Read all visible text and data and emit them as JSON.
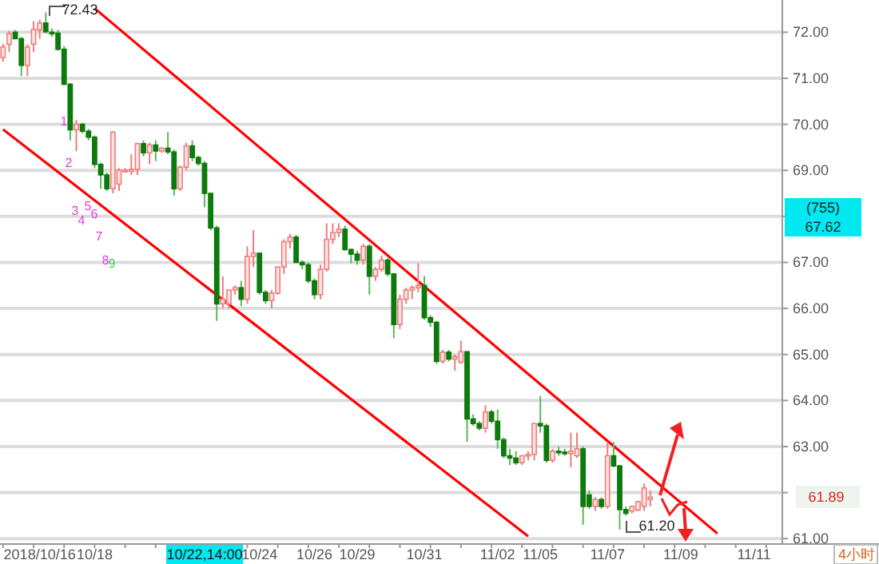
{
  "chart_data": {
    "type": "candlestick",
    "categories": [
      null,
      null,
      null,
      null,
      null,
      null,
      "2018/10/16",
      null,
      null,
      null,
      null,
      null,
      null,
      null,
      null,
      "10/18",
      null,
      null,
      null,
      null,
      null,
      null,
      null,
      null,
      null,
      null,
      null,
      null,
      null,
      null,
      null,
      null,
      null,
      null,
      null,
      null,
      null,
      null,
      null,
      null,
      null,
      null,
      "10/24",
      null,
      null,
      null,
      null,
      null,
      null,
      null,
      null,
      "10/26",
      null,
      null,
      null,
      null,
      null,
      null,
      "10/29",
      null,
      null,
      null,
      null,
      null,
      null,
      null,
      null,
      null,
      null,
      "10/31",
      null,
      null,
      null,
      null,
      null,
      null,
      null,
      null,
      null,
      null,
      null,
      "11/02",
      null,
      null,
      null,
      null,
      null,
      null,
      "11/05",
      null,
      null,
      null,
      null,
      null,
      null,
      null,
      null,
      null,
      null,
      "11/07",
      null,
      null,
      null,
      null,
      null,
      null,
      null,
      null,
      null,
      null,
      null,
      "11/09",
      null,
      null,
      null,
      null,
      null,
      null,
      null,
      null,
      null,
      null,
      null,
      "11/11",
      null,
      null,
      null,
      null
    ],
    "ohlc": [
      [
        71.45,
        71.75,
        71.36,
        71.68
      ],
      [
        71.74,
        72.03,
        71.57,
        71.97
      ],
      [
        72.0,
        72.05,
        71.85,
        71.86
      ],
      [
        71.86,
        71.9,
        71.05,
        71.28
      ],
      [
        71.28,
        71.74,
        71.05,
        71.68
      ],
      [
        71.74,
        72.24,
        71.57,
        72.06
      ],
      [
        72.05,
        72.27,
        71.86,
        72.2
      ],
      [
        72.2,
        72.43,
        71.98,
        72.01
      ],
      [
        72.0,
        72.08,
        71.9,
        71.98
      ],
      [
        71.98,
        72.05,
        71.6,
        71.63
      ],
      [
        71.63,
        71.7,
        70.85,
        70.87
      ],
      [
        70.87,
        70.9,
        69.65,
        69.88
      ],
      [
        69.88,
        70.1,
        69.42,
        70.0
      ],
      [
        70.0,
        70.03,
        69.8,
        69.85
      ],
      [
        69.85,
        69.9,
        69.65,
        69.72
      ],
      [
        69.72,
        69.76,
        69.05,
        69.13
      ],
      [
        69.13,
        69.17,
        68.6,
        68.9
      ],
      [
        68.9,
        68.95,
        68.55,
        68.6
      ],
      [
        68.6,
        69.85,
        68.5,
        69.83
      ],
      [
        68.7,
        69.05,
        68.55,
        69.0
      ],
      [
        69.0,
        69.05,
        68.95,
        69.0
      ],
      [
        68.98,
        69.35,
        68.9,
        69.02
      ],
      [
        69.02,
        69.6,
        68.9,
        69.58
      ],
      [
        69.58,
        69.65,
        69.3,
        69.38
      ],
      [
        69.38,
        69.6,
        69.13,
        69.55
      ],
      [
        69.55,
        69.65,
        69.2,
        69.42
      ],
      [
        69.42,
        69.5,
        69.38,
        69.48
      ],
      [
        69.48,
        69.83,
        69.35,
        69.4
      ],
      [
        69.4,
        69.45,
        68.45,
        68.6
      ],
      [
        68.6,
        69.1,
        68.55,
        69.07
      ],
      [
        69.07,
        69.6,
        69.0,
        69.53
      ],
      [
        69.53,
        69.65,
        69.2,
        69.28
      ],
      [
        69.28,
        69.32,
        69.1,
        69.15
      ],
      [
        69.15,
        69.2,
        68.2,
        68.5
      ],
      [
        68.5,
        68.5,
        67.7,
        67.75
      ],
      [
        67.75,
        67.8,
        65.73,
        66.1
      ],
      [
        66.1,
        66.7,
        66.0,
        66.2
      ],
      [
        66.1,
        66.4,
        66.0,
        66.4
      ],
      [
        66.4,
        66.5,
        66.3,
        66.45
      ],
      [
        66.45,
        66.6,
        66.05,
        66.2
      ],
      [
        66.2,
        67.35,
        66.1,
        67.13
      ],
      [
        67.13,
        67.7,
        66.9,
        67.2
      ],
      [
        67.2,
        67.2,
        66.3,
        66.35
      ],
      [
        66.35,
        66.4,
        66.1,
        66.17
      ],
      [
        66.17,
        66.4,
        66.0,
        66.33
      ],
      [
        66.33,
        66.9,
        66.3,
        66.9
      ],
      [
        66.9,
        67.5,
        66.75,
        67.45
      ],
      [
        67.45,
        67.62,
        67.3,
        67.55
      ],
      [
        67.55,
        67.6,
        67.0,
        67.0
      ],
      [
        67.0,
        67.05,
        66.85,
        66.95
      ],
      [
        66.95,
        67.0,
        66.55,
        66.6
      ],
      [
        66.6,
        66.65,
        66.2,
        66.3
      ],
      [
        66.3,
        66.95,
        66.2,
        66.85
      ],
      [
        66.85,
        67.85,
        66.8,
        67.5
      ],
      [
        67.5,
        67.85,
        67.4,
        67.65
      ],
      [
        67.65,
        67.85,
        67.55,
        67.72
      ],
      [
        67.72,
        67.8,
        67.25,
        67.28
      ],
      [
        67.28,
        67.3,
        66.98,
        67.18
      ],
      [
        67.18,
        67.25,
        66.95,
        67.05
      ],
      [
        67.05,
        67.4,
        66.95,
        67.35
      ],
      [
        67.35,
        67.4,
        66.3,
        66.7
      ],
      [
        66.7,
        66.9,
        66.6,
        66.85
      ],
      [
        66.85,
        67.15,
        66.8,
        67.05
      ],
      [
        67.05,
        67.1,
        66.7,
        66.75
      ],
      [
        66.75,
        66.75,
        65.35,
        65.65
      ],
      [
        65.65,
        66.3,
        65.55,
        66.2
      ],
      [
        66.2,
        66.45,
        66.1,
        66.4
      ],
      [
        66.4,
        66.5,
        66.2,
        66.45
      ],
      [
        66.45,
        66.98,
        66.35,
        66.5
      ],
      [
        66.5,
        66.7,
        65.75,
        65.8
      ],
      [
        65.8,
        65.85,
        65.6,
        65.7
      ],
      [
        65.7,
        65.72,
        64.8,
        64.85
      ],
      [
        64.85,
        65.1,
        64.8,
        65.05
      ],
      [
        65.05,
        65.1,
        64.85,
        64.9
      ],
      [
        64.9,
        65.0,
        64.65,
        64.95
      ],
      [
        64.83,
        65.3,
        64.8,
        65.06
      ],
      [
        65.06,
        65.06,
        63.1,
        63.6
      ],
      [
        63.6,
        63.7,
        63.45,
        63.5
      ],
      [
        63.5,
        63.55,
        63.35,
        63.4
      ],
      [
        63.4,
        63.9,
        63.3,
        63.75
      ],
      [
        63.75,
        63.8,
        63.5,
        63.55
      ],
      [
        63.55,
        63.8,
        62.95,
        63.15
      ],
      [
        63.15,
        63.2,
        62.75,
        62.8
      ],
      [
        62.8,
        62.95,
        62.6,
        62.75
      ],
      [
        62.75,
        62.9,
        62.6,
        62.65
      ],
      [
        62.65,
        62.8,
        62.6,
        62.8
      ],
      [
        62.8,
        62.9,
        62.7,
        62.83
      ],
      [
        62.83,
        63.5,
        62.7,
        63.5
      ],
      [
        63.5,
        64.1,
        63.3,
        63.45
      ],
      [
        63.45,
        63.5,
        62.65,
        62.7
      ],
      [
        62.7,
        62.95,
        62.65,
        62.9
      ],
      [
        62.9,
        63.0,
        62.8,
        62.88
      ],
      [
        62.88,
        62.95,
        62.8,
        62.85
      ],
      [
        62.85,
        63.3,
        62.55,
        62.9
      ],
      [
        62.8,
        63.3,
        62.75,
        62.95
      ],
      [
        62.95,
        63.0,
        61.3,
        61.7
      ],
      [
        61.95,
        62.05,
        61.65,
        61.7
      ],
      [
        61.7,
        61.9,
        61.6,
        61.85
      ],
      [
        61.85,
        61.9,
        61.65,
        61.7
      ],
      [
        61.7,
        63.1,
        61.65,
        62.8
      ],
      [
        62.8,
        63.1,
        62.55,
        62.58
      ],
      [
        62.58,
        62.6,
        61.2,
        61.63
      ],
      [
        61.63,
        61.7,
        61.5,
        61.55
      ],
      [
        61.6,
        61.72,
        61.55,
        61.7
      ],
      [
        61.62,
        61.82,
        61.6,
        61.8
      ],
      [
        61.7,
        62.2,
        61.6,
        62.1
      ],
      [
        61.85,
        62.05,
        61.7,
        61.9
      ],
      null,
      null,
      null,
      null,
      null,
      null,
      null,
      null,
      null,
      null,
      null,
      null,
      null,
      null,
      null,
      null,
      null,
      null,
      null,
      null,
      null
    ],
    "series": [
      {
        "type": "line",
        "color": "#ff0000",
        "values": [
          null,
          null,
          null,
          null,
          null,
          null,
          null,
          null,
          null,
          null,
          null,
          null,
          null,
          null,
          null,
          72.52,
          null,
          null,
          null,
          null,
          null,
          null,
          null,
          null,
          null,
          null,
          null,
          null,
          null,
          null,
          null,
          null,
          null,
          null,
          null,
          null,
          null,
          null,
          null,
          null,
          null,
          null,
          null,
          null,
          null,
          null,
          null,
          null,
          null,
          null,
          null,
          null,
          null,
          null,
          null,
          null,
          null,
          null,
          null,
          null,
          null,
          null,
          null,
          null,
          null,
          null,
          null,
          null,
          null,
          null,
          null,
          null,
          null,
          null,
          null,
          null,
          null,
          null,
          null,
          null,
          null,
          null,
          null,
          null,
          null,
          null,
          null,
          null,
          null,
          null,
          null,
          null,
          null,
          null,
          null,
          null,
          null,
          null,
          null,
          null,
          null,
          null,
          null,
          null,
          null,
          null,
          null,
          null,
          null,
          null,
          null,
          null,
          null,
          null,
          null,
          null,
          null,
          61.11,
          null,
          null,
          null,
          null,
          null,
          null,
          null,
          null,
          null,
          null
        ]
      },
      {
        "type": "line",
        "color": "#ff0000",
        "values": [
          69.89,
          null,
          null,
          null,
          null,
          null,
          null,
          null,
          null,
          null,
          null,
          null,
          null,
          null,
          null,
          null,
          null,
          null,
          null,
          null,
          null,
          null,
          null,
          null,
          null,
          null,
          null,
          null,
          null,
          null,
          null,
          null,
          null,
          null,
          null,
          null,
          null,
          null,
          null,
          null,
          null,
          null,
          null,
          null,
          null,
          null,
          null,
          null,
          null,
          null,
          null,
          null,
          null,
          null,
          null,
          null,
          null,
          null,
          null,
          null,
          null,
          null,
          null,
          null,
          null,
          null,
          null,
          null,
          null,
          null,
          null,
          null,
          null,
          null,
          null,
          null,
          null,
          null,
          null,
          null,
          null,
          null,
          null,
          null,
          null,
          null,
          61.05,
          null,
          null,
          null,
          null,
          null,
          null,
          null,
          null,
          null,
          null,
          null,
          null,
          null,
          null,
          null,
          null,
          null,
          null,
          null,
          null,
          null,
          null,
          null,
          null,
          null,
          null,
          null,
          null,
          null,
          null,
          null,
          null,
          null,
          null,
          null,
          null,
          null,
          null,
          null,
          null,
          null
        ]
      }
    ],
    "ylim": [
      60.9,
      72.7
    ],
    "yticks": [
      {
        "value": 61,
        "label": "61.00"
      },
      {
        "value": 62,
        "label": null
      },
      {
        "value": 63,
        "label": "63.00"
      },
      {
        "value": 64,
        "label": "64.00"
      },
      {
        "value": 65,
        "label": "65.00"
      },
      {
        "value": 66,
        "label": "66.00"
      },
      {
        "value": 67,
        "label": "67.00"
      },
      {
        "value": 68,
        "label": null
      },
      {
        "value": 69,
        "label": "69.00"
      },
      {
        "value": 70,
        "label": "70.00"
      },
      {
        "value": 71,
        "label": "71.00"
      },
      {
        "value": 72,
        "label": "72.00"
      }
    ],
    "grid": "y",
    "annotations": [
      "72.43",
      "61.20",
      "1",
      "2",
      "3",
      "4",
      "5",
      "6",
      "7",
      "8",
      "9",
      "(755)",
      "67.62",
      "61.89",
      "10/22,14:00",
      "4小时"
    ]
  }
}
